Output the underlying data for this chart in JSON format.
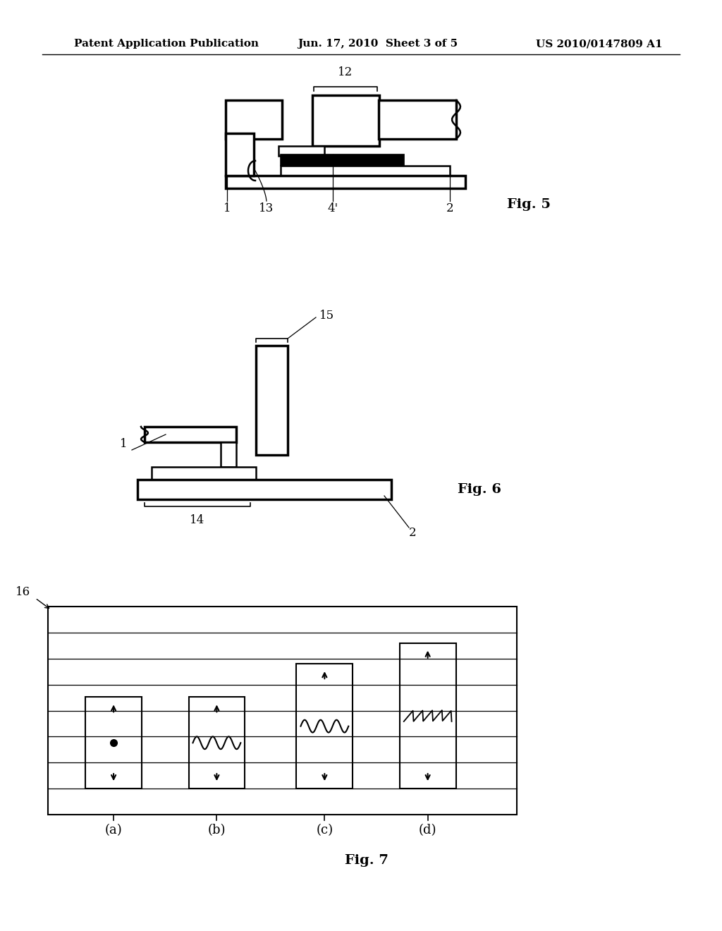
{
  "header_left": "Patent Application Publication",
  "header_center": "Jun. 17, 2010  Sheet 3 of 5",
  "header_right": "US 2010/0147809 A1",
  "fig5_label": "Fig. 5",
  "fig6_label": "Fig. 6",
  "fig7_label": "Fig. 7",
  "background": "#ffffff",
  "line_color": "#000000"
}
